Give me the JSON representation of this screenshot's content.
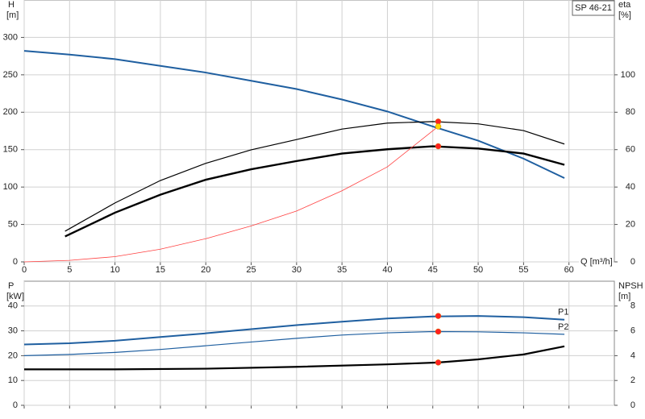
{
  "chart_data": [
    {
      "type": "line",
      "title": "SP 46-21",
      "xlabel": "Q [m³/h]",
      "ylabel": "H",
      "yunit": "[m]",
      "y2label": "eta",
      "y2unit": "[%]",
      "xlim": [
        0,
        65
      ],
      "xticks": [
        0,
        5,
        10,
        15,
        20,
        25,
        30,
        35,
        40,
        45,
        50,
        55,
        60
      ],
      "ylim": [
        0,
        350
      ],
      "yticks": [
        0,
        50,
        100,
        150,
        200,
        250,
        300
      ],
      "y2lim": [
        0,
        140
      ],
      "y2ticks": [
        0,
        20,
        40,
        60,
        80,
        100
      ],
      "grid": true,
      "xtick_labels": true,
      "series": [
        {
          "color": "#1f5fa0",
          "width": 2,
          "x": [
            0,
            5,
            10,
            15,
            20,
            25,
            30,
            35,
            40,
            45,
            50,
            55,
            59.5
          ],
          "values": [
            282,
            277,
            271,
            262,
            253,
            242,
            231,
            217,
            201,
            181,
            162,
            138,
            112
          ]
        },
        {
          "color": "#000000",
          "width": 1.2,
          "axis": "y2",
          "x": [
            4.5,
            10,
            15,
            20,
            25,
            30,
            35,
            40,
            45,
            50,
            55,
            59.5
          ],
          "values": [
            16.4,
            31.5,
            43.5,
            52.7,
            59.9,
            65.4,
            71,
            74.2,
            75,
            73.8,
            70.2,
            63
          ]
        },
        {
          "color": "#000000",
          "width": 2.4,
          "axis": "y2",
          "x": [
            4.5,
            10,
            15,
            20,
            25,
            30,
            35,
            40,
            45,
            50,
            55,
            59.5
          ],
          "values": [
            13.6,
            26.3,
            35.9,
            43.9,
            49.5,
            53.9,
            57.9,
            60.2,
            61.8,
            60.6,
            57.9,
            51.9
          ]
        },
        {
          "color": "#ff4040",
          "width": 0.8,
          "x": [
            0,
            5,
            10,
            15,
            20,
            25,
            30,
            35,
            40,
            45.6
          ],
          "values": [
            0,
            2,
            7,
            17,
            31,
            48,
            68,
            95,
            127,
            181
          ]
        }
      ],
      "points": [
        {
          "x": 45.6,
          "y": 75,
          "axis": "y2",
          "color": "#ff2020"
        },
        {
          "x": 45.6,
          "y": 61.8,
          "axis": "y2",
          "color": "#ff2020"
        },
        {
          "x": 45.6,
          "y": 181,
          "color": "#ffd700"
        }
      ]
    },
    {
      "type": "line",
      "ylabel": "P",
      "yunit": "[kW]",
      "y2label": "NPSH",
      "y2unit": "[m]",
      "xlim": [
        0,
        65
      ],
      "xticks": [
        0,
        5,
        10,
        15,
        20,
        25,
        30,
        35,
        40,
        45,
        50,
        55,
        60
      ],
      "ylim": [
        0,
        50
      ],
      "yticks": [
        0,
        10,
        20,
        30,
        40
      ],
      "y2lim": [
        0,
        10
      ],
      "y2ticks": [
        0,
        2,
        4,
        6,
        8
      ],
      "grid": true,
      "xtick_labels": false,
      "series": [
        {
          "name": "P1",
          "color": "#1f5fa0",
          "width": 2,
          "x": [
            0,
            5,
            10,
            15,
            20,
            25,
            30,
            35,
            40,
            45,
            50,
            55,
            59.5
          ],
          "values": [
            24.5,
            25,
            26,
            27.5,
            29,
            30.7,
            32.3,
            33.7,
            35,
            35.8,
            36,
            35.5,
            34.5
          ]
        },
        {
          "name": "P2",
          "color": "#1f5fa0",
          "width": 1.2,
          "x": [
            0,
            5,
            10,
            15,
            20,
            25,
            30,
            35,
            40,
            45,
            50,
            55,
            59.5
          ],
          "values": [
            20,
            20.5,
            21.3,
            22.5,
            24,
            25.5,
            27,
            28.3,
            29.2,
            29.7,
            29.6,
            29.2,
            28.6
          ]
        },
        {
          "color": "#000000",
          "width": 2.2,
          "axis": "y2",
          "x": [
            0,
            5,
            10,
            20,
            30,
            40,
            45.6,
            50,
            55,
            59.5
          ],
          "values": [
            2.9,
            2.9,
            2.9,
            2.95,
            3.1,
            3.3,
            3.45,
            3.7,
            4.1,
            4.75
          ]
        }
      ],
      "points": [
        {
          "x": 45.6,
          "y": 36,
          "color": "#ff2020"
        },
        {
          "x": 45.6,
          "y": 29.7,
          "color": "#ff2020"
        },
        {
          "x": 45.6,
          "y": 3.45,
          "axis": "y2",
          "color": "#ff2020"
        }
      ]
    }
  ]
}
